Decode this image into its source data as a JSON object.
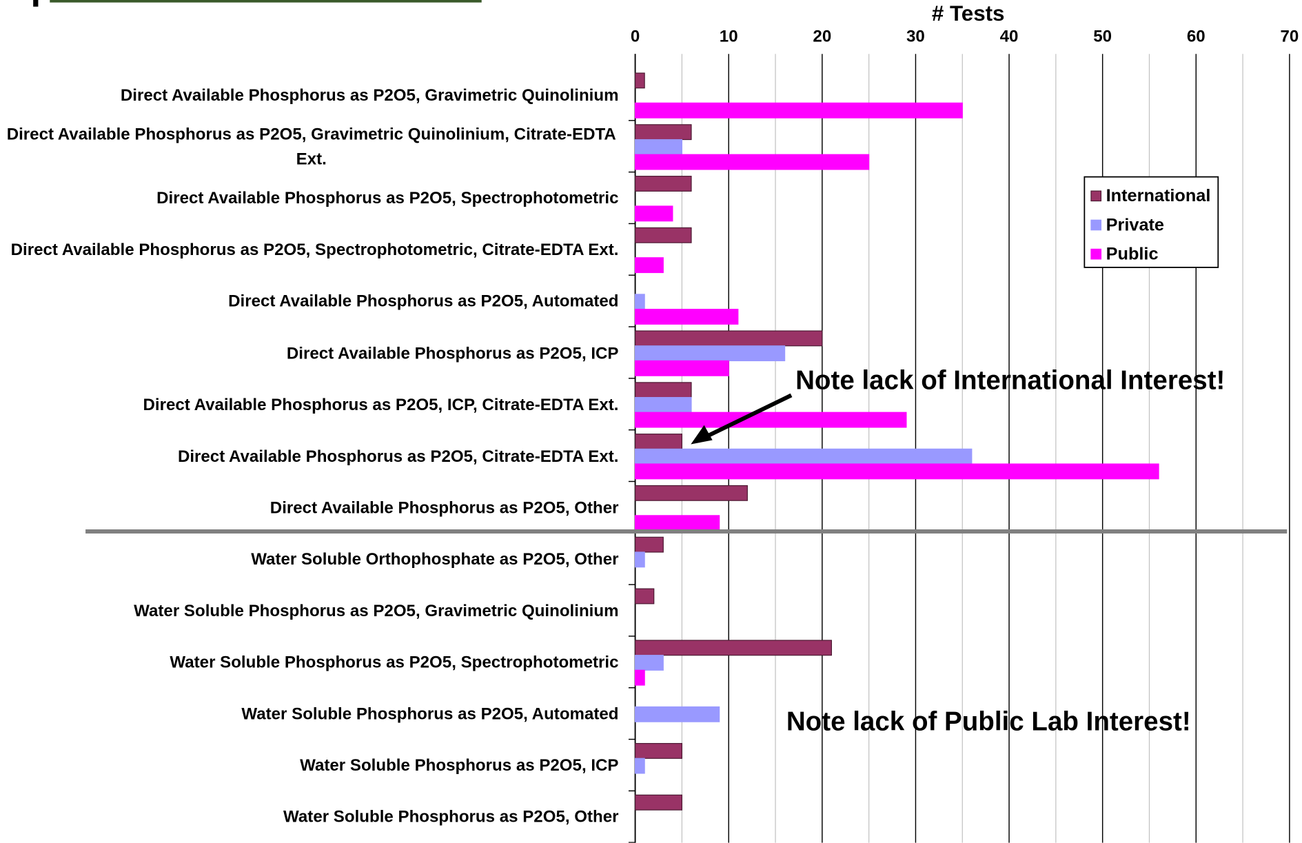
{
  "chart_data": {
    "type": "barh",
    "x_label": "# Tests",
    "categories": [
      "Direct Available Phosphorus as P2O5, Gravimetric Quinolinium",
      "Direct Available Phosphorus as P2O5, Gravimetric Quinolinium, Citrate-EDTA Ext.",
      "Direct Available Phosphorus as P2O5, Spectrophotometric",
      "Direct Available Phosphorus as P2O5, Spectrophotometric, Citrate-EDTA Ext.",
      "Direct Available Phosphorus as P2O5, Automated",
      "Direct Available Phosphorus as P2O5, ICP",
      "Direct Available Phosphorus as P2O5, ICP, Citrate-EDTA Ext.",
      "Direct Available Phosphorus as P2O5, Citrate-EDTA Ext.",
      "Direct Available Phosphorus as P2O5, Other",
      "Water Soluble Orthophosphate as P2O5, Other",
      "Water Soluble Phosphorus as P2O5, Gravimetric Quinolinium",
      "Water Soluble Phosphorus as P2O5, Spectrophotometric",
      "Water Soluble Phosphorus as P2O5, Automated",
      "Water Soluble Phosphorus as P2O5, ICP",
      "Water Soluble Phosphorus as P2O5, Other"
    ],
    "series": [
      {
        "name": "International",
        "color": "#993366",
        "values": [
          1,
          6,
          6,
          6,
          0,
          20,
          6,
          5,
          12,
          3,
          2,
          21,
          0,
          5,
          5
        ]
      },
      {
        "name": "Private",
        "color": "#9999ff",
        "values": [
          0,
          5,
          0,
          0,
          1,
          16,
          6,
          36,
          0,
          1,
          0,
          3,
          9,
          1,
          0
        ]
      },
      {
        "name": "Public",
        "color": "#ff00ff",
        "values": [
          35,
          25,
          4,
          3,
          11,
          10,
          29,
          56,
          9,
          0,
          0,
          1,
          0,
          0,
          0
        ]
      }
    ],
    "xlim": [
      0,
      70
    ],
    "xticks": [
      0,
      10,
      20,
      30,
      40,
      50,
      60,
      70
    ],
    "minor_xticks": [
      5,
      15,
      25,
      35,
      45,
      55,
      65
    ],
    "grid": true,
    "legend": "right",
    "annotations": [
      "Note lack of International Interest!",
      "Note lack of Public Lab Interest!"
    ]
  }
}
